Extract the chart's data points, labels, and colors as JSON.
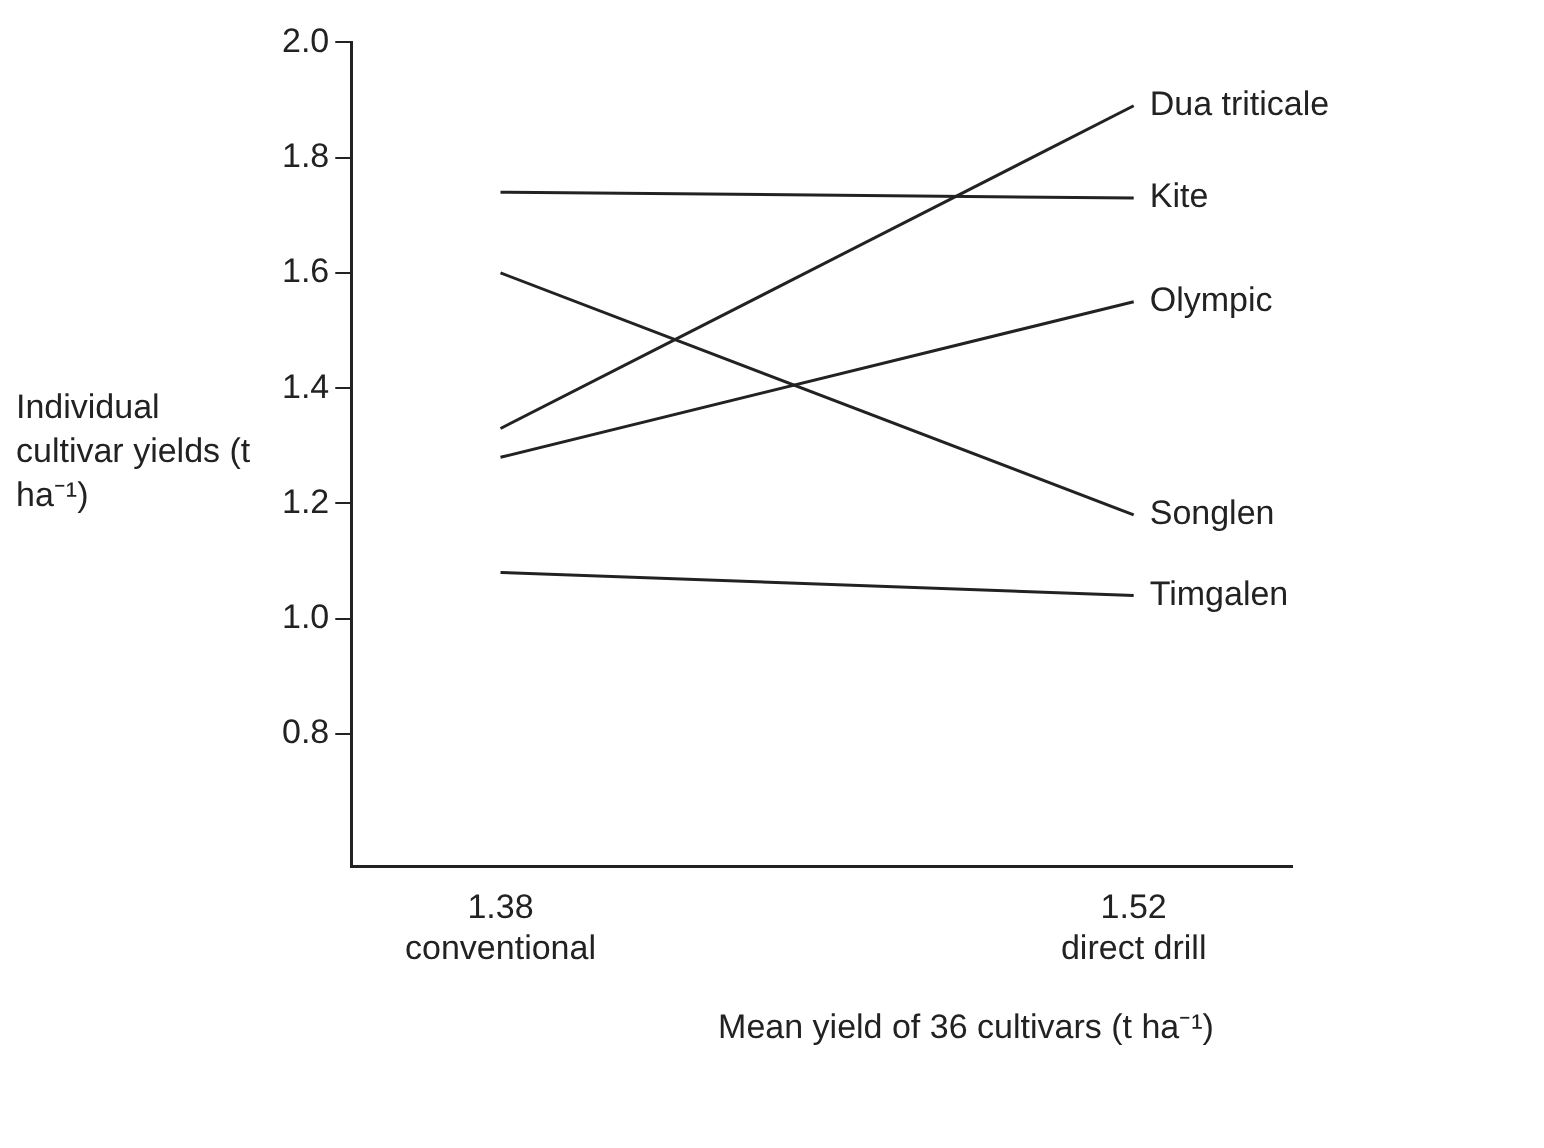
{
  "chart_data": {
    "type": "line",
    "xlabel": "Mean yield of 36 cultivars (t ha⁻¹)",
    "ylabel": "Individual cultivar yields (t ha⁻¹)",
    "x": [
      1.38,
      1.52
    ],
    "series": [
      {
        "name": "Dua triticale",
        "color": "#222222",
        "values": [
          1.33,
          1.89
        ]
      },
      {
        "name": "Kite",
        "color": "#222222",
        "values": [
          1.74,
          1.73
        ]
      },
      {
        "name": "Olympic",
        "color": "#222222",
        "values": [
          1.28,
          1.55
        ]
      },
      {
        "name": "Songlen",
        "color": "#222222",
        "values": [
          1.6,
          1.18
        ]
      },
      {
        "name": "Timgalen",
        "color": "#222222",
        "values": [
          1.08,
          1.04
        ]
      }
    ],
    "xlim": [
      1.347,
      1.555
    ],
    "xticks": [
      {
        "value": 1.38,
        "label": "1.38\nconventional"
      },
      {
        "value": 1.52,
        "label": "1.52\ndirect drill"
      }
    ],
    "ylim": [
      0.57,
      2.0
    ],
    "yticks": [
      {
        "value": 0.8,
        "label": "0.8"
      },
      {
        "value": 1.0,
        "label": "1.0"
      },
      {
        "value": 1.2,
        "label": "1.2"
      },
      {
        "value": 1.4,
        "label": "1.4"
      },
      {
        "value": 1.6,
        "label": "1.6"
      },
      {
        "value": 1.8,
        "label": "1.8"
      },
      {
        "value": 2.0,
        "label": "2.0"
      }
    ],
    "grid": false,
    "legend": false,
    "marker": "none",
    "line_style": "solid"
  }
}
